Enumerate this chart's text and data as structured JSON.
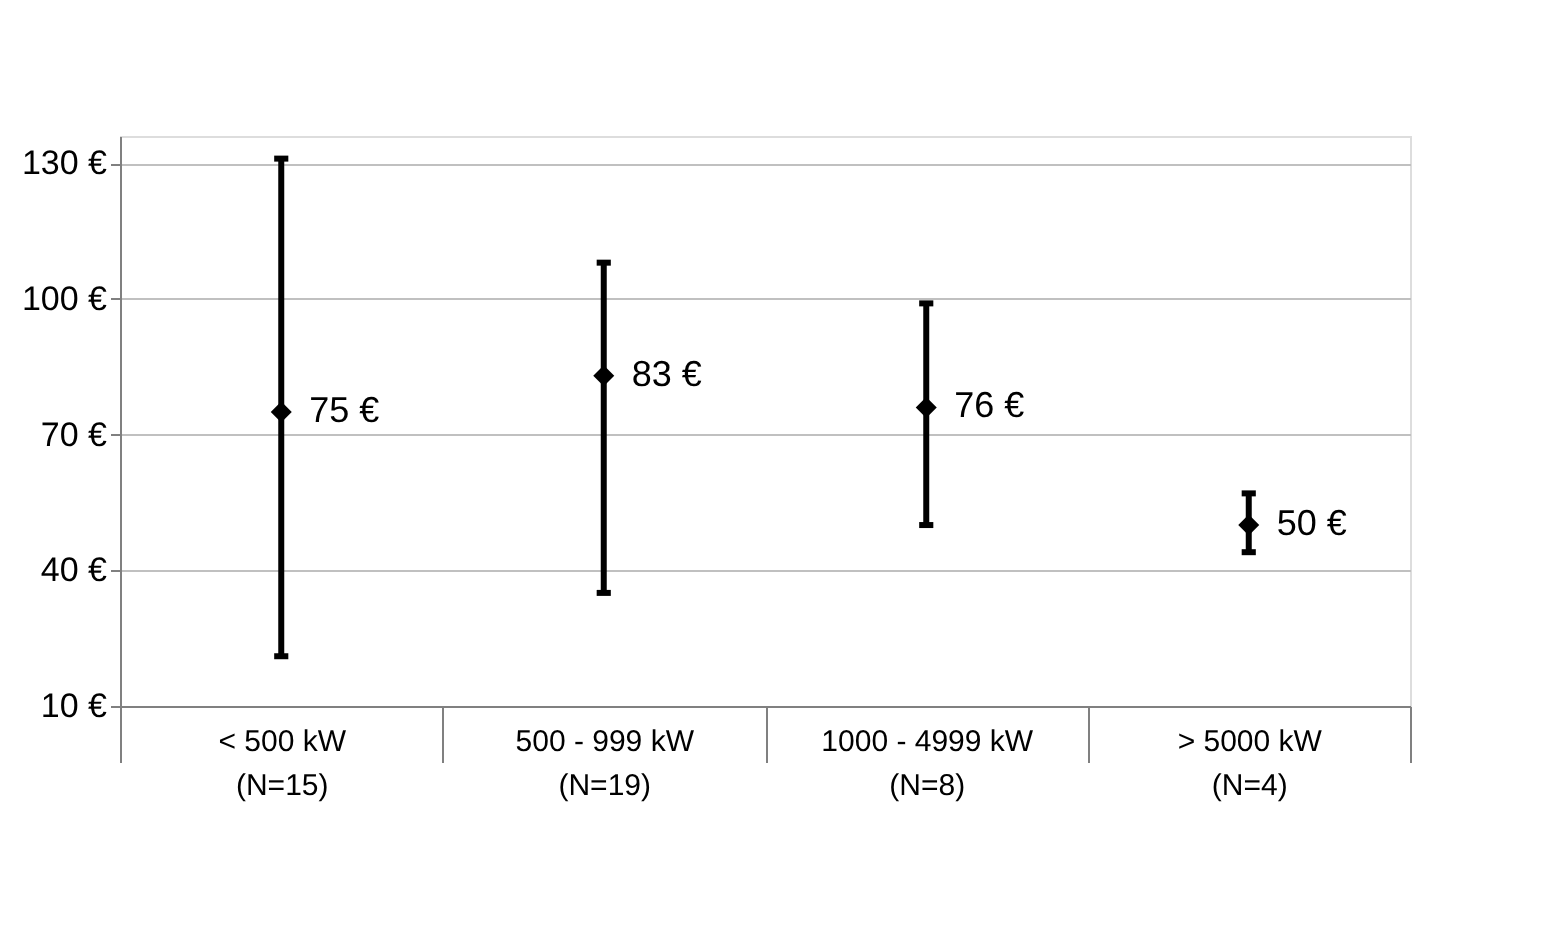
{
  "chart_data": {
    "type": "scatter",
    "categories": [
      "< 500 kW\n(N=15)",
      "500 - 999 kW\n(N=19)",
      "1000 - 4999 kW\n(N=8)",
      "> 5000 kW\n(N=4)"
    ],
    "series": [
      {
        "color": "#000000",
        "values": [
          75,
          83,
          76,
          50
        ],
        "errors": [
          [
            21,
            131
          ],
          [
            35,
            108
          ],
          [
            50,
            99
          ],
          [
            44,
            57
          ]
        ],
        "value_labels": [
          "75 €",
          "83 €",
          "76 €",
          "50 €"
        ]
      }
    ],
    "marker": "diamond",
    "ylim": [
      10,
      136
    ],
    "yticks": [
      {
        "value": 10,
        "label": "10 €"
      },
      {
        "value": 40,
        "label": "40 €"
      },
      {
        "value": 70,
        "label": "70 €"
      },
      {
        "value": 100,
        "label": "100 €"
      },
      {
        "value": 130,
        "label": "130 €"
      }
    ],
    "grid": "y"
  }
}
